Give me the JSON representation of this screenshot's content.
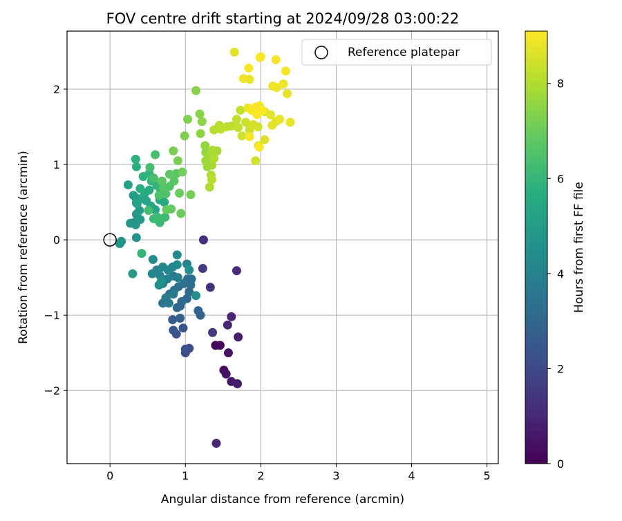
{
  "chart_data": {
    "type": "scatter",
    "title": "FOV centre drift starting at 2024/09/28 03:00:22",
    "xlabel": "Angular distance from reference (arcmin)",
    "ylabel": "Rotation from reference (arcmin)",
    "xlim": [
      -0.57,
      5.15
    ],
    "ylim": [
      -2.97,
      2.77
    ],
    "x_ticks": [
      0,
      1,
      2,
      3,
      4,
      5
    ],
    "y_ticks": [
      -2,
      -1,
      0,
      1,
      2
    ],
    "x_tick_labels": [
      "0",
      "1",
      "2",
      "3",
      "4",
      "5"
    ],
    "y_tick_labels": [
      "−2",
      "−1",
      "0",
      "1",
      "2"
    ],
    "grid": true,
    "legend": {
      "position": "top-right",
      "label": "Reference platepar"
    },
    "reference_point": {
      "x": 0,
      "y": 0
    },
    "colorbar": {
      "label": "Hours from first FF file",
      "range": [
        0,
        9.1
      ],
      "ticks": [
        0,
        2,
        4,
        6,
        8
      ],
      "tick_labels": [
        "0",
        "2",
        "4",
        "6",
        "8"
      ],
      "colormap": "viridis"
    },
    "points": [
      {
        "x": 1.4,
        "y": -1.4,
        "h": 0.1
      },
      {
        "x": 1.46,
        "y": -1.4,
        "h": 0.15
      },
      {
        "x": 1.51,
        "y": -1.73,
        "h": 0.3
      },
      {
        "x": 1.54,
        "y": -1.78,
        "h": 0.4
      },
      {
        "x": 1.57,
        "y": -1.5,
        "h": 0.5
      },
      {
        "x": 1.61,
        "y": -1.88,
        "h": 0.6
      },
      {
        "x": 1.69,
        "y": -1.91,
        "h": 0.7
      },
      {
        "x": 1.7,
        "y": -1.29,
        "h": 0.8
      },
      {
        "x": 1.61,
        "y": -1.02,
        "h": 0.9
      },
      {
        "x": 1.56,
        "y": -1.13,
        "h": 1.0
      },
      {
        "x": 1.41,
        "y": -2.7,
        "h": 1.0
      },
      {
        "x": 1.68,
        "y": -0.41,
        "h": 1.1
      },
      {
        "x": 1.24,
        "y": 0.0,
        "h": 1.2
      },
      {
        "x": 1.33,
        "y": -0.63,
        "h": 1.3
      },
      {
        "x": 1.23,
        "y": -0.38,
        "h": 1.4
      },
      {
        "x": 1.36,
        "y": -1.23,
        "h": 1.5
      },
      {
        "x": 1.0,
        "y": -1.5,
        "h": 2.0
      },
      {
        "x": 1.05,
        "y": -1.44,
        "h": 2.1
      },
      {
        "x": 1.0,
        "y": -1.45,
        "h": 2.2
      },
      {
        "x": 0.88,
        "y": -1.25,
        "h": 2.3
      },
      {
        "x": 0.97,
        "y": -1.17,
        "h": 2.4
      },
      {
        "x": 0.84,
        "y": -1.2,
        "h": 2.5
      },
      {
        "x": 0.83,
        "y": -1.06,
        "h": 2.6
      },
      {
        "x": 0.93,
        "y": -1.04,
        "h": 2.7
      },
      {
        "x": 1.2,
        "y": -1.0,
        "h": 2.8
      },
      {
        "x": 1.17,
        "y": -0.94,
        "h": 2.9
      },
      {
        "x": 0.89,
        "y": -0.9,
        "h": 3.0
      },
      {
        "x": 0.93,
        "y": -0.88,
        "h": 3.0
      },
      {
        "x": 0.95,
        "y": -0.82,
        "h": 3.1
      },
      {
        "x": 1.02,
        "y": -0.78,
        "h": 3.1
      },
      {
        "x": 1.05,
        "y": -0.69,
        "h": 3.2
      },
      {
        "x": 1.07,
        "y": -0.6,
        "h": 3.2
      },
      {
        "x": 1.03,
        "y": -0.52,
        "h": 3.3
      },
      {
        "x": 1.08,
        "y": -0.52,
        "h": 3.3
      },
      {
        "x": 0.98,
        "y": -0.58,
        "h": 3.4
      },
      {
        "x": 0.91,
        "y": -0.62,
        "h": 3.4
      },
      {
        "x": 0.85,
        "y": -0.67,
        "h": 3.5
      },
      {
        "x": 0.79,
        "y": -0.72,
        "h": 3.5
      },
      {
        "x": 0.74,
        "y": -0.77,
        "h": 3.6
      },
      {
        "x": 0.7,
        "y": -0.84,
        "h": 3.6
      },
      {
        "x": 0.78,
        "y": -0.84,
        "h": 3.7
      },
      {
        "x": 0.84,
        "y": -0.72,
        "h": 3.7
      },
      {
        "x": 0.9,
        "y": -0.5,
        "h": 3.8
      },
      {
        "x": 0.84,
        "y": -0.48,
        "h": 3.8
      },
      {
        "x": 0.76,
        "y": -0.52,
        "h": 3.9
      },
      {
        "x": 0.7,
        "y": -0.58,
        "h": 3.9
      },
      {
        "x": 0.66,
        "y": -0.47,
        "h": 4.0
      },
      {
        "x": 0.62,
        "y": -0.4,
        "h": 4.0
      },
      {
        "x": 0.56,
        "y": -0.45,
        "h": 4.1
      },
      {
        "x": 0.7,
        "y": -0.36,
        "h": 4.1
      },
      {
        "x": 0.77,
        "y": -0.4,
        "h": 4.2
      },
      {
        "x": 0.83,
        "y": -0.36,
        "h": 4.2
      },
      {
        "x": 0.89,
        "y": -0.33,
        "h": 4.3
      },
      {
        "x": 0.89,
        "y": -0.2,
        "h": 4.3
      },
      {
        "x": 1.02,
        "y": -0.32,
        "h": 4.0
      },
      {
        "x": 1.05,
        "y": -0.4,
        "h": 4.4
      },
      {
        "x": 0.57,
        "y": -0.26,
        "h": 4.4
      },
      {
        "x": 0.65,
        "y": -0.6,
        "h": 4.5
      },
      {
        "x": 1.14,
        "y": -0.74,
        "h": 4.5
      },
      {
        "x": 0.68,
        "y": -0.55,
        "h": 4.6
      },
      {
        "x": 0.13,
        "y": -0.05,
        "h": 4.6
      },
      {
        "x": 0.15,
        "y": -0.02,
        "h": 4.7
      },
      {
        "x": 0.35,
        "y": 0.03,
        "h": 4.7
      },
      {
        "x": 0.34,
        "y": 0.2,
        "h": 4.8
      },
      {
        "x": 0.27,
        "y": 0.22,
        "h": 4.8
      },
      {
        "x": 0.32,
        "y": 0.23,
        "h": 4.8
      },
      {
        "x": 0.4,
        "y": 0.27,
        "h": 4.9
      },
      {
        "x": 0.35,
        "y": 0.34,
        "h": 4.9
      },
      {
        "x": 0.39,
        "y": 0.39,
        "h": 5.0
      },
      {
        "x": 0.35,
        "y": 0.49,
        "h": 5.0
      },
      {
        "x": 0.31,
        "y": 0.59,
        "h": 5.1
      },
      {
        "x": 0.34,
        "y": 0.56,
        "h": 5.1
      },
      {
        "x": 0.24,
        "y": 0.73,
        "h": 5.2
      },
      {
        "x": 0.36,
        "y": 0.48,
        "h": 5.2
      },
      {
        "x": 0.42,
        "y": 0.55,
        "h": 5.3
      },
      {
        "x": 0.48,
        "y": 0.52,
        "h": 5.3
      },
      {
        "x": 0.54,
        "y": 0.45,
        "h": 5.4
      },
      {
        "x": 0.6,
        "y": 0.4,
        "h": 5.4
      },
      {
        "x": 0.66,
        "y": 0.53,
        "h": 5.5
      },
      {
        "x": 0.72,
        "y": 0.5,
        "h": 5.5
      },
      {
        "x": 0.3,
        "y": -0.45,
        "h": 5.0
      },
      {
        "x": 0.52,
        "y": 0.66,
        "h": 5.6
      },
      {
        "x": 0.46,
        "y": 0.62,
        "h": 5.6
      },
      {
        "x": 0.4,
        "y": 0.68,
        "h": 5.7
      },
      {
        "x": 0.35,
        "y": 0.97,
        "h": 5.7
      },
      {
        "x": 0.34,
        "y": 1.07,
        "h": 5.8
      },
      {
        "x": 0.44,
        "y": 0.84,
        "h": 5.8
      },
      {
        "x": 0.52,
        "y": 0.88,
        "h": 5.9
      },
      {
        "x": 0.55,
        "y": 0.78,
        "h": 5.9
      },
      {
        "x": 0.62,
        "y": 0.72,
        "h": 6.0
      },
      {
        "x": 0.67,
        "y": 0.66,
        "h": 6.0
      },
      {
        "x": 0.58,
        "y": 0.28,
        "h": 6.1
      },
      {
        "x": 0.66,
        "y": 0.23,
        "h": 6.1
      },
      {
        "x": 0.73,
        "y": 0.3,
        "h": 6.2
      },
      {
        "x": 0.63,
        "y": 0.3,
        "h": 6.2
      },
      {
        "x": 0.51,
        "y": 0.39,
        "h": 6.3
      },
      {
        "x": 0.53,
        "y": 0.96,
        "h": 6.3
      },
      {
        "x": 0.6,
        "y": 1.13,
        "h": 6.4
      },
      {
        "x": 0.58,
        "y": 0.82,
        "h": 6.4
      },
      {
        "x": 0.65,
        "y": 0.59,
        "h": 6.5
      },
      {
        "x": 0.74,
        "y": 0.61,
        "h": 6.5
      },
      {
        "x": 0.71,
        "y": 0.69,
        "h": 6.6
      },
      {
        "x": 0.79,
        "y": 0.71,
        "h": 6.6
      },
      {
        "x": 0.85,
        "y": 0.78,
        "h": 6.7
      },
      {
        "x": 0.88,
        "y": 0.88,
        "h": 6.7
      },
      {
        "x": 0.79,
        "y": 0.87,
        "h": 6.8
      },
      {
        "x": 0.69,
        "y": 0.78,
        "h": 6.8
      },
      {
        "x": 0.75,
        "y": 0.4,
        "h": 6.9
      },
      {
        "x": 0.81,
        "y": 0.41,
        "h": 6.9
      },
      {
        "x": 0.94,
        "y": 0.35,
        "h": 7.0
      },
      {
        "x": 0.92,
        "y": 0.62,
        "h": 7.0
      },
      {
        "x": 1.07,
        "y": 0.6,
        "h": 7.1
      },
      {
        "x": 0.96,
        "y": 0.9,
        "h": 7.1
      },
      {
        "x": 0.9,
        "y": 1.05,
        "h": 7.2
      },
      {
        "x": 0.84,
        "y": 1.18,
        "h": 7.2
      },
      {
        "x": 0.42,
        "y": -0.18,
        "h": 6.0
      },
      {
        "x": 0.99,
        "y": 1.38,
        "h": 7.3
      },
      {
        "x": 1.03,
        "y": 1.6,
        "h": 7.3
      },
      {
        "x": 1.14,
        "y": 1.98,
        "h": 7.4
      },
      {
        "x": 1.19,
        "y": 1.67,
        "h": 7.4
      },
      {
        "x": 1.22,
        "y": 1.57,
        "h": 7.5
      },
      {
        "x": 1.2,
        "y": 1.41,
        "h": 7.5
      },
      {
        "x": 1.26,
        "y": 1.25,
        "h": 7.6
      },
      {
        "x": 1.27,
        "y": 1.16,
        "h": 7.6
      },
      {
        "x": 1.27,
        "y": 1.05,
        "h": 7.7
      },
      {
        "x": 1.29,
        "y": 0.97,
        "h": 7.7
      },
      {
        "x": 1.35,
        "y": 0.99,
        "h": 7.8
      },
      {
        "x": 1.33,
        "y": 1.12,
        "h": 7.8
      },
      {
        "x": 1.36,
        "y": 1.19,
        "h": 7.9
      },
      {
        "x": 1.42,
        "y": 1.18,
        "h": 7.9
      },
      {
        "x": 1.38,
        "y": 1.08,
        "h": 8.0
      },
      {
        "x": 1.34,
        "y": 0.86,
        "h": 8.0
      },
      {
        "x": 1.32,
        "y": 0.7,
        "h": 8.0
      },
      {
        "x": 1.35,
        "y": 0.8,
        "h": 8.1
      },
      {
        "x": 1.45,
        "y": 1.52,
        "h": 8.1
      },
      {
        "x": 1.38,
        "y": 1.46,
        "h": 8.1
      },
      {
        "x": 1.47,
        "y": 1.47,
        "h": 8.2
      },
      {
        "x": 1.55,
        "y": 1.5,
        "h": 8.2
      },
      {
        "x": 1.61,
        "y": 1.51,
        "h": 8.2
      },
      {
        "x": 1.7,
        "y": 1.49,
        "h": 8.3
      },
      {
        "x": 1.73,
        "y": 1.72,
        "h": 8.3
      },
      {
        "x": 1.68,
        "y": 1.6,
        "h": 8.3
      },
      {
        "x": 1.8,
        "y": 1.56,
        "h": 8.4
      },
      {
        "x": 1.85,
        "y": 1.46,
        "h": 8.4
      },
      {
        "x": 1.75,
        "y": 1.38,
        "h": 8.4
      },
      {
        "x": 1.9,
        "y": 1.53,
        "h": 8.5
      },
      {
        "x": 1.96,
        "y": 1.5,
        "h": 8.5
      },
      {
        "x": 1.93,
        "y": 1.05,
        "h": 8.5
      },
      {
        "x": 1.97,
        "y": 1.25,
        "h": 8.6
      },
      {
        "x": 2.05,
        "y": 1.33,
        "h": 8.6
      },
      {
        "x": 2.05,
        "y": 1.7,
        "h": 8.6
      },
      {
        "x": 2.13,
        "y": 1.66,
        "h": 8.7
      },
      {
        "x": 2.15,
        "y": 1.52,
        "h": 8.7
      },
      {
        "x": 2.2,
        "y": 1.57,
        "h": 8.7
      },
      {
        "x": 2.25,
        "y": 1.6,
        "h": 8.8
      },
      {
        "x": 2.39,
        "y": 1.56,
        "h": 8.8
      },
      {
        "x": 2.35,
        "y": 1.94,
        "h": 8.8
      },
      {
        "x": 2.3,
        "y": 2.07,
        "h": 8.9
      },
      {
        "x": 2.16,
        "y": 2.04,
        "h": 8.9
      },
      {
        "x": 2.21,
        "y": 2.02,
        "h": 8.9
      },
      {
        "x": 2.33,
        "y": 2.24,
        "h": 9.0
      },
      {
        "x": 2.2,
        "y": 2.39,
        "h": 9.0
      },
      {
        "x": 1.99,
        "y": 2.42,
        "h": 9.0
      },
      {
        "x": 1.84,
        "y": 2.28,
        "h": 9.0
      },
      {
        "x": 1.77,
        "y": 2.14,
        "h": 8.9
      },
      {
        "x": 1.85,
        "y": 2.13,
        "h": 8.8
      },
      {
        "x": 1.65,
        "y": 2.49,
        "h": 8.7
      },
      {
        "x": 1.83,
        "y": 1.75,
        "h": 8.9
      },
      {
        "x": 1.88,
        "y": 1.72,
        "h": 9.0
      },
      {
        "x": 1.93,
        "y": 1.76,
        "h": 9.0
      },
      {
        "x": 1.98,
        "y": 1.78,
        "h": 9.0
      },
      {
        "x": 1.98,
        "y": 1.23,
        "h": 9.1
      },
      {
        "x": 1.85,
        "y": 1.37,
        "h": 9.0
      },
      {
        "x": 1.95,
        "y": 1.66,
        "h": 9.1
      },
      {
        "x": 2.02,
        "y": 1.72,
        "h": 9.1
      },
      {
        "x": 2.0,
        "y": 2.43,
        "h": 9.1
      }
    ]
  }
}
